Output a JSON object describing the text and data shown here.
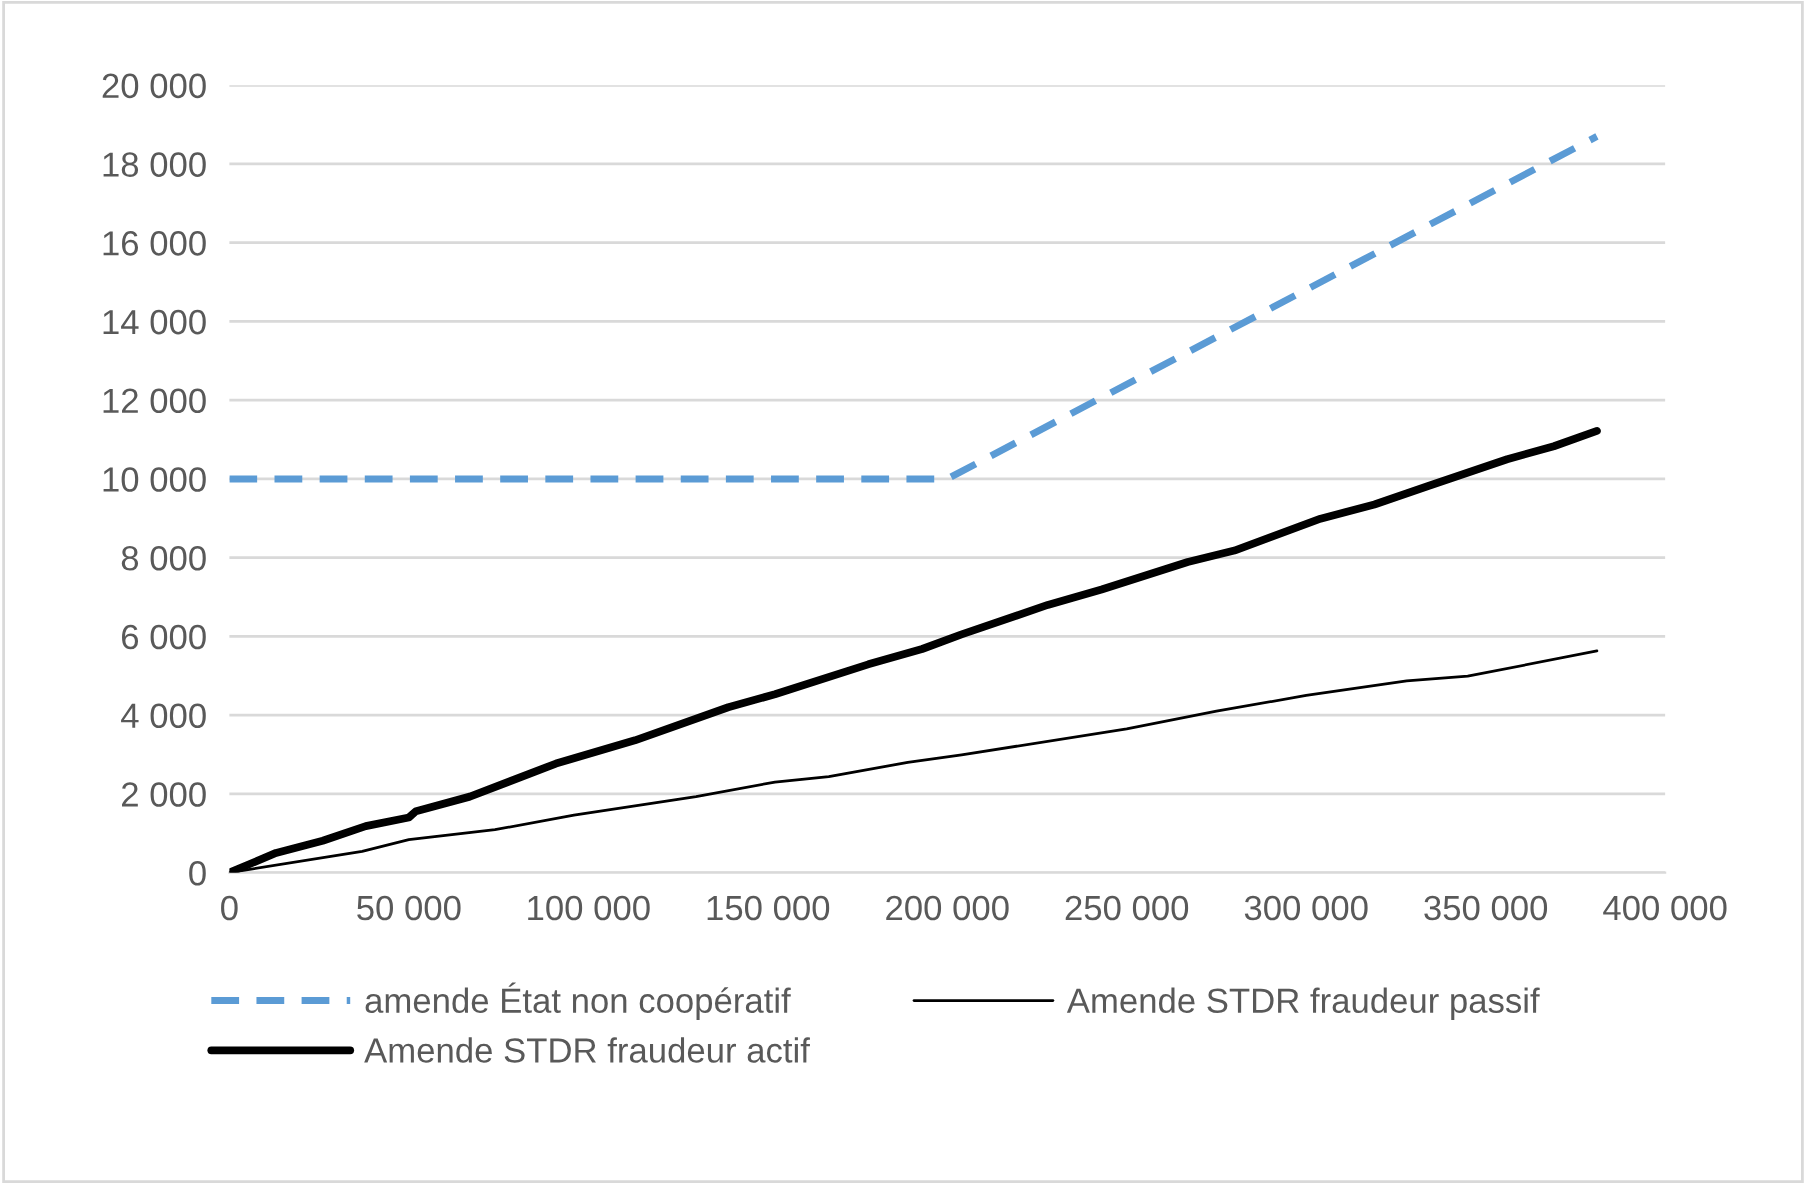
{
  "chart_data": {
    "type": "line",
    "xlim": [
      0,
      400000
    ],
    "xticks": [
      {
        "value": 0,
        "label": "0"
      },
      {
        "value": 50000,
        "label": "50 000"
      },
      {
        "value": 100000,
        "label": "100 000"
      },
      {
        "value": 150000,
        "label": "150 000"
      },
      {
        "value": 200000,
        "label": "200 000"
      },
      {
        "value": 250000,
        "label": "250 000"
      },
      {
        "value": 300000,
        "label": "300 000"
      },
      {
        "value": 350000,
        "label": "350 000"
      },
      {
        "value": 400000,
        "label": "400 000"
      }
    ],
    "ylim": [
      0,
      20000
    ],
    "yticks": [
      {
        "value": 0,
        "label": "0"
      },
      {
        "value": 2000,
        "label": "2 000"
      },
      {
        "value": 4000,
        "label": "4 000"
      },
      {
        "value": 6000,
        "label": "6 000"
      },
      {
        "value": 8000,
        "label": "8 000"
      },
      {
        "value": 10000,
        "label": "10 000"
      },
      {
        "value": 12000,
        "label": "12 000"
      },
      {
        "value": 14000,
        "label": "14 000"
      },
      {
        "value": 16000,
        "label": "16 000"
      },
      {
        "value": 18000,
        "label": "18 000"
      },
      {
        "value": 20000,
        "label": "20 000"
      }
    ],
    "grid": "y",
    "legend": "bottom",
    "marker": "none",
    "series": [
      {
        "name": "amende État non coopératif",
        "color": "#5b9bd5",
        "line_style": "dashed",
        "x": [
          0,
          200000,
          381000
        ],
        "values": [
          10000,
          10000,
          18700
        ]
      },
      {
        "name": "Amende STDR fraudeur passif",
        "color": "#000000",
        "line_style": "solid",
        "x": [
          0,
          37000,
          50000,
          74000,
          96000,
          130000,
          152000,
          167000,
          189000,
          204000,
          250000,
          275000,
          300000,
          328000,
          345000,
          381000
        ],
        "values": [
          0,
          540,
          840,
          1090,
          1460,
          1930,
          2300,
          2440,
          2800,
          2990,
          3650,
          4100,
          4500,
          4870,
          4990,
          5630
        ]
      },
      {
        "name": "Amende STDR fraudeur actif",
        "color": "#000000",
        "line_style": "solid",
        "x": [
          0,
          13000,
          26000,
          38000,
          50000,
          52000,
          67000,
          91000,
          113000,
          139000,
          152000,
          178000,
          193000,
          204000,
          228000,
          243000,
          267000,
          280000,
          304000,
          319000,
          334000,
          356000,
          369000,
          381000
        ],
        "values": [
          0,
          500,
          810,
          1180,
          1400,
          1560,
          1930,
          2770,
          3360,
          4200,
          4530,
          5290,
          5680,
          6050,
          6800,
          7190,
          7890,
          8180,
          8990,
          9350,
          9820,
          10500,
          10830,
          11220
        ]
      }
    ]
  }
}
